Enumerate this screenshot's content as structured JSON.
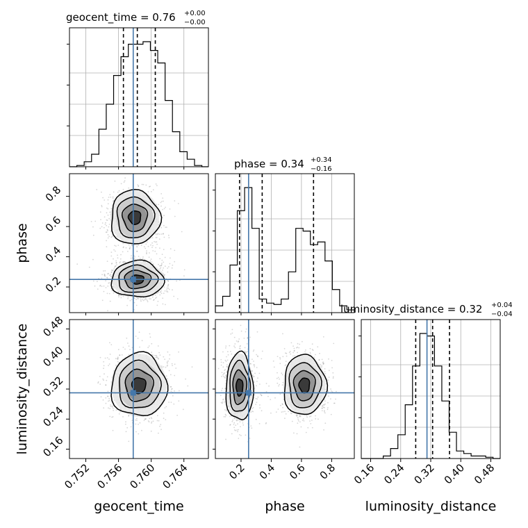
{
  "chart_data": {
    "type": "corner",
    "parameters": [
      "geocent_time",
      "phase",
      "luminosity_distance"
    ],
    "truths": {
      "geocent_time": 0.7578,
      "phase": 0.25,
      "luminosity_distance": 0.31
    },
    "titles": [
      {
        "param": "geocent_time",
        "text": "geocent_time = 0.76",
        "plus": "+0.00",
        "minus": "−0.00"
      },
      {
        "param": "phase",
        "text": "phase = 0.34",
        "plus": "+0.34",
        "minus": "−0.16"
      },
      {
        "param": "luminosity_distance",
        "text": "luminosity_distance = 0.32",
        "plus": "+0.04",
        "minus": "−0.04"
      }
    ],
    "axes": {
      "geocent_time": {
        "range": [
          0.75,
          0.767
        ],
        "ticks": [
          0.752,
          0.756,
          0.76,
          0.764
        ],
        "tick_labels": [
          "0.752",
          "0.756",
          "0.760",
          "0.764"
        ]
      },
      "phase": {
        "range": [
          0.03,
          0.95
        ],
        "ticks": [
          0.2,
          0.4,
          0.6,
          0.8
        ],
        "tick_labels": [
          "0.2",
          "0.4",
          "0.6",
          "0.8"
        ]
      },
      "luminosity_distance": {
        "range": [
          0.135,
          0.505
        ],
        "ticks": [
          0.16,
          0.24,
          0.32,
          0.4,
          0.48
        ],
        "tick_labels": [
          "0.16",
          "0.24",
          "0.32",
          "0.40",
          "0.48"
        ]
      }
    },
    "histograms": [
      {
        "param": "geocent_time",
        "bin_edges": [
          0.75,
          0.7509,
          0.7518,
          0.7527,
          0.7536,
          0.7545,
          0.7554,
          0.7563,
          0.7572,
          0.7581,
          0.759,
          0.7599,
          0.7608,
          0.7617,
          0.7626,
          0.7635,
          0.7644,
          0.7653,
          0.7662,
          0.767
        ],
        "counts": [
          0.0,
          0.01,
          0.04,
          0.1,
          0.3,
          0.5,
          0.73,
          0.88,
          0.98,
          0.98,
          1.0,
          0.93,
          0.83,
          0.53,
          0.28,
          0.12,
          0.06,
          0.01,
          0.0
        ],
        "quantiles": [
          0.7566,
          0.7583,
          0.7605
        ]
      },
      {
        "param": "phase",
        "bin_edges": [
          0.03,
          0.0784,
          0.1268,
          0.1752,
          0.2236,
          0.272,
          0.3204,
          0.3688,
          0.4172,
          0.4656,
          0.514,
          0.5624,
          0.6108,
          0.6592,
          0.7076,
          0.756,
          0.8044,
          0.8528,
          0.9012,
          0.95
        ],
        "counts": [
          0.05,
          0.12,
          0.35,
          0.75,
          0.92,
          0.62,
          0.1,
          0.07,
          0.06,
          0.1,
          0.3,
          0.62,
          0.6,
          0.5,
          0.52,
          0.38,
          0.17,
          0.05,
          0.02
        ],
        "quantiles": [
          0.19,
          0.34,
          0.68
        ]
      },
      {
        "param": "luminosity_distance",
        "bin_edges": [
          0.135,
          0.1545,
          0.174,
          0.1935,
          0.213,
          0.2325,
          0.252,
          0.2715,
          0.291,
          0.3105,
          0.33,
          0.3495,
          0.369,
          0.3885,
          0.408,
          0.4275,
          0.447,
          0.4665,
          0.486,
          0.505
        ],
        "counts": [
          0.0,
          0.0,
          0.0,
          0.02,
          0.08,
          0.19,
          0.43,
          0.74,
          1.0,
          0.98,
          0.74,
          0.46,
          0.21,
          0.06,
          0.04,
          0.02,
          0.02,
          0.01,
          0.0
        ],
        "quantiles": [
          0.28,
          0.325,
          0.37
        ]
      }
    ],
    "contours_2d": [
      {
        "x": "geocent_time",
        "y": "phase",
        "modes": [
          {
            "center": [
              0.7583,
              0.25
            ],
            "sd": [
              0.0016,
              0.06
            ]
          },
          {
            "center": [
              0.758,
              0.66
            ],
            "sd": [
              0.0015,
              0.09
            ]
          }
        ]
      },
      {
        "x": "geocent_time",
        "y": "luminosity_distance",
        "modes": [
          {
            "center": [
              0.7585,
              0.33
            ],
            "sd": [
              0.0017,
              0.042
            ]
          }
        ]
      },
      {
        "x": "phase",
        "y": "luminosity_distance",
        "modes": [
          {
            "center": [
              0.19,
              0.325
            ],
            "sd": [
              0.045,
              0.045
            ]
          },
          {
            "center": [
              0.62,
              0.33
            ],
            "sd": [
              0.07,
              0.04
            ]
          }
        ]
      }
    ],
    "truth_color": "#4477aa",
    "line_color": "#000000",
    "grid": true
  }
}
